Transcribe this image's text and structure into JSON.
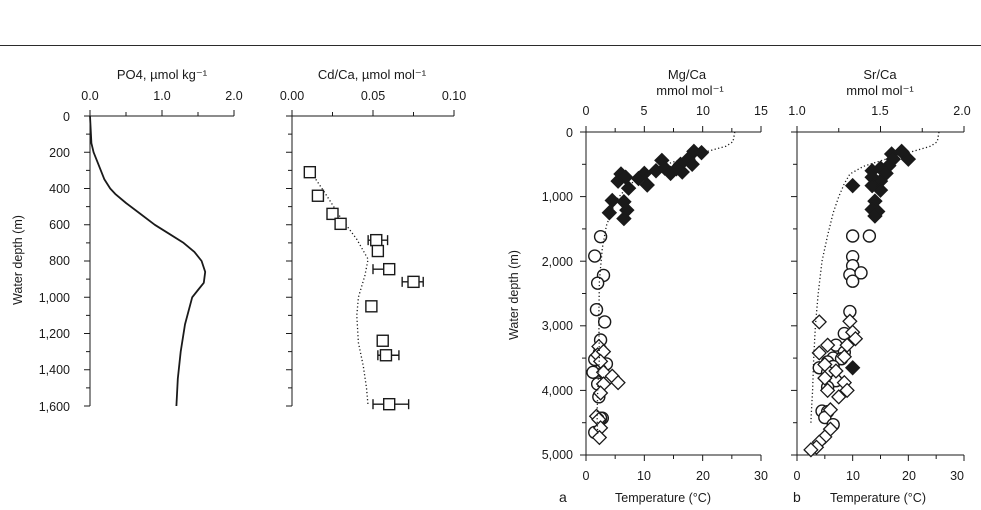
{
  "chart_data": [
    {
      "type": "line",
      "title": "PO4, µmol kg⁻¹",
      "ylabel": "Water depth (m)",
      "x_range": [
        0,
        2.0
      ],
      "x_ticks": [
        "0.0",
        "1.0",
        "2.0"
      ],
      "y_range": [
        0,
        1600
      ],
      "y_ticks": [
        "0",
        "200",
        "400",
        "600",
        "800",
        "1,000",
        "1,200",
        "1,400",
        "1,600"
      ],
      "series": [
        {
          "style": "solid",
          "x": [
            0,
            0.02,
            0.05,
            0.1,
            0.2,
            0.28,
            0.35,
            0.5,
            0.7,
            0.9,
            1.1,
            1.3,
            1.45,
            1.55,
            1.6,
            1.58,
            1.5,
            1.42,
            1.32,
            1.26,
            1.22,
            1.2
          ],
          "y": [
            0,
            150,
            200,
            250,
            350,
            400,
            430,
            480,
            540,
            600,
            650,
            700,
            750,
            800,
            860,
            920,
            960,
            1000,
            1150,
            1300,
            1450,
            1600
          ]
        }
      ]
    },
    {
      "type": "scatter",
      "title": "Cd/Ca, µmol mol⁻¹",
      "x_range": [
        0,
        0.1
      ],
      "x_ticks": [
        "0.00",
        "0.05",
        "0.10"
      ],
      "y_range": [
        0,
        1600
      ],
      "series": [
        {
          "marker": "open-square",
          "points": [
            {
              "x": 0.011,
              "y": 310
            },
            {
              "x": 0.016,
              "y": 440
            },
            {
              "x": 0.025,
              "y": 540
            },
            {
              "x": 0.03,
              "y": 595
            },
            {
              "x": 0.052,
              "y": 685,
              "xerr_minus": 0.005,
              "xerr_plus": 0.007
            },
            {
              "x": 0.053,
              "y": 745
            },
            {
              "x": 0.06,
              "y": 845,
              "xerr_minus": 0.01,
              "xerr_plus": 0.0
            },
            {
              "x": 0.075,
              "y": 915,
              "xerr_minus": 0.007,
              "xerr_plus": 0.006
            },
            {
              "x": 0.049,
              "y": 1050
            },
            {
              "x": 0.056,
              "y": 1240
            },
            {
              "x": 0.058,
              "y": 1320,
              "xerr_minus": 0.005,
              "xerr_plus": 0.008
            },
            {
              "x": 0.06,
              "y": 1590,
              "xerr_minus": 0.01,
              "xerr_plus": 0.012
            }
          ]
        },
        {
          "style": "dotted",
          "x": [
            0.011,
            0.02,
            0.03,
            0.04,
            0.047,
            0.045,
            0.041,
            0.04,
            0.041,
            0.044,
            0.046,
            0.047
          ],
          "y": [
            300,
            420,
            560,
            680,
            790,
            880,
            1000,
            1100,
            1250,
            1380,
            1500,
            1600
          ]
        }
      ]
    },
    {
      "type": "scatter",
      "panel_label": "a",
      "title_line1": "Mg/Ca",
      "title_line2": "mmol mol⁻¹",
      "xlabel": "Temperature (°C)",
      "ylabel": "Water depth (m)",
      "top_axis_range": [
        0,
        15
      ],
      "top_ticks": [
        "0",
        "5",
        "10",
        "15"
      ],
      "x_range": [
        0,
        30
      ],
      "x_ticks": [
        "0",
        "10",
        "20",
        "30"
      ],
      "y_range": [
        0,
        5000
      ],
      "y_ticks": [
        "0",
        "1,000",
        "2,000",
        "3,000",
        "4,000",
        "5,000"
      ],
      "series": [
        {
          "marker": "filled-diamond",
          "points": [
            [
              18.5,
              300
            ],
            [
              19.8,
              320
            ],
            [
              17.5,
              420
            ],
            [
              18.2,
              500
            ],
            [
              16.2,
              500
            ],
            [
              13,
              440
            ],
            [
              13.5,
              560
            ],
            [
              14.5,
              640
            ],
            [
              16.5,
              620
            ],
            [
              15.5,
              570
            ],
            [
              12,
              600
            ],
            [
              10,
              640
            ],
            [
              9,
              720
            ],
            [
              6,
              650
            ],
            [
              5.5,
              760
            ],
            [
              6.8,
              700
            ],
            [
              7.3,
              870
            ],
            [
              10.5,
              820
            ],
            [
              4.5,
              1060
            ],
            [
              4,
              1250
            ],
            [
              6.5,
              1080
            ],
            [
              7,
              1210
            ],
            [
              6.5,
              1340
            ]
          ]
        },
        {
          "marker": "open-circle",
          "points": [
            [
              2.5,
              1620
            ],
            [
              1.5,
              1920
            ],
            [
              3,
              2220
            ],
            [
              2,
              2340
            ],
            [
              1.8,
              2750
            ],
            [
              3.2,
              2940
            ],
            [
              2.5,
              3220
            ],
            [
              2.3,
              3420
            ],
            [
              1.5,
              3520
            ],
            [
              3.5,
              3590
            ],
            [
              2.5,
              3690
            ],
            [
              1.2,
              3720
            ],
            [
              3.5,
              3830
            ],
            [
              2,
              3900
            ],
            [
              2.2,
              4100
            ],
            [
              2.8,
              4430
            ],
            [
              2.5,
              4430
            ],
            [
              1.5,
              4650
            ]
          ]
        },
        {
          "marker": "open-diamond",
          "points": [
            [
              2.2,
              3320
            ],
            [
              2,
              3450
            ],
            [
              3,
              3400
            ],
            [
              2.5,
              3550
            ],
            [
              3,
              3720
            ],
            [
              4.5,
              3780
            ],
            [
              5.5,
              3880
            ],
            [
              3,
              3900
            ],
            [
              2.5,
              4040
            ],
            [
              1.8,
              4400
            ],
            [
              2.2,
              4450
            ],
            [
              2.5,
              4580
            ],
            [
              2.3,
              4730
            ]
          ]
        },
        {
          "style": "dotted",
          "x": [
            25.5,
            25.2,
            24,
            20,
            16,
            12,
            9,
            7,
            5.5,
            4.5,
            3.5,
            2.8,
            2.3,
            2.2,
            2.3,
            2.0,
            1.9,
            2.0
          ],
          "y": [
            0,
            150,
            220,
            320,
            430,
            560,
            700,
            860,
            1020,
            1200,
            1450,
            1800,
            2300,
            2900,
            3500,
            4000,
            4400,
            4700
          ]
        }
      ]
    },
    {
      "type": "scatter",
      "panel_label": "b",
      "title_line1": "Sr/Ca",
      "title_line2": "mmol mol⁻¹",
      "xlabel": "Temperature (°C)",
      "top_axis_range": [
        1.0,
        2.0
      ],
      "top_ticks": [
        "1.0",
        "1.5",
        "2.0"
      ],
      "x_range": [
        0,
        30
      ],
      "x_ticks": [
        "0",
        "10",
        "20",
        "30"
      ],
      "y_range": [
        0,
        5000
      ],
      "series": [
        {
          "marker": "filled-diamond",
          "points": [
            [
              18.8,
              300
            ],
            [
              17,
              340
            ],
            [
              17.3,
              420
            ],
            [
              20,
              420
            ],
            [
              16.5,
              520
            ],
            [
              15,
              560
            ],
            [
              13.5,
              600
            ],
            [
              16,
              640
            ],
            [
              13.5,
              700
            ],
            [
              15,
              760
            ],
            [
              10,
              830
            ],
            [
              13.5,
              830
            ],
            [
              15,
              900
            ],
            [
              14,
              1070
            ],
            [
              13.5,
              1200
            ],
            [
              14.5,
              1230
            ],
            [
              14,
              1300
            ],
            [
              10,
              3650
            ]
          ]
        },
        {
          "marker": "open-circle",
          "points": [
            [
              10,
              1610
            ],
            [
              13,
              1610
            ],
            [
              10,
              1930
            ],
            [
              10,
              2070
            ],
            [
              9.5,
              2210
            ],
            [
              11.5,
              2180
            ],
            [
              10,
              2310
            ],
            [
              9.5,
              2780
            ],
            [
              8.5,
              3120
            ],
            [
              7,
              3300
            ],
            [
              8.5,
              3410
            ],
            [
              6.5,
              3500
            ],
            [
              8,
              3510
            ],
            [
              5.5,
              3560
            ],
            [
              4,
              3650
            ],
            [
              6.5,
              3630
            ],
            [
              5.5,
              3720
            ],
            [
              7,
              3850
            ],
            [
              5.5,
              3950
            ],
            [
              4.5,
              4320
            ],
            [
              5.5,
              4330
            ],
            [
              5,
              4420
            ],
            [
              6.5,
              4530
            ]
          ]
        },
        {
          "marker": "open-diamond",
          "points": [
            [
              4,
              2940
            ],
            [
              9.5,
              2930
            ],
            [
              10,
              3100
            ],
            [
              10.5,
              3200
            ],
            [
              9,
              3300
            ],
            [
              5.5,
              3300
            ],
            [
              8.5,
              3480
            ],
            [
              4,
              3420
            ],
            [
              5,
              3600
            ],
            [
              7,
              3700
            ],
            [
              5,
              3810
            ],
            [
              8.5,
              3880
            ],
            [
              9,
              4000
            ],
            [
              5.5,
              4000
            ],
            [
              7.5,
              4100
            ],
            [
              6,
              4300
            ],
            [
              6,
              4600
            ],
            [
              5,
              4720
            ],
            [
              4,
              4800
            ],
            [
              3.5,
              4880
            ],
            [
              2.5,
              4920
            ]
          ]
        },
        {
          "style": "dotted",
          "x": [
            25.5,
            25.2,
            24,
            20,
            16,
            12,
            9.5,
            8.5,
            7.5,
            6.5,
            5.5,
            4.5,
            3.8,
            3.3,
            3.0,
            2.8,
            2.6,
            2.5
          ],
          "y": [
            0,
            150,
            220,
            320,
            420,
            530,
            650,
            800,
            1000,
            1250,
            1600,
            2000,
            2500,
            3000,
            3500,
            4000,
            4300,
            4500
          ]
        }
      ]
    }
  ]
}
